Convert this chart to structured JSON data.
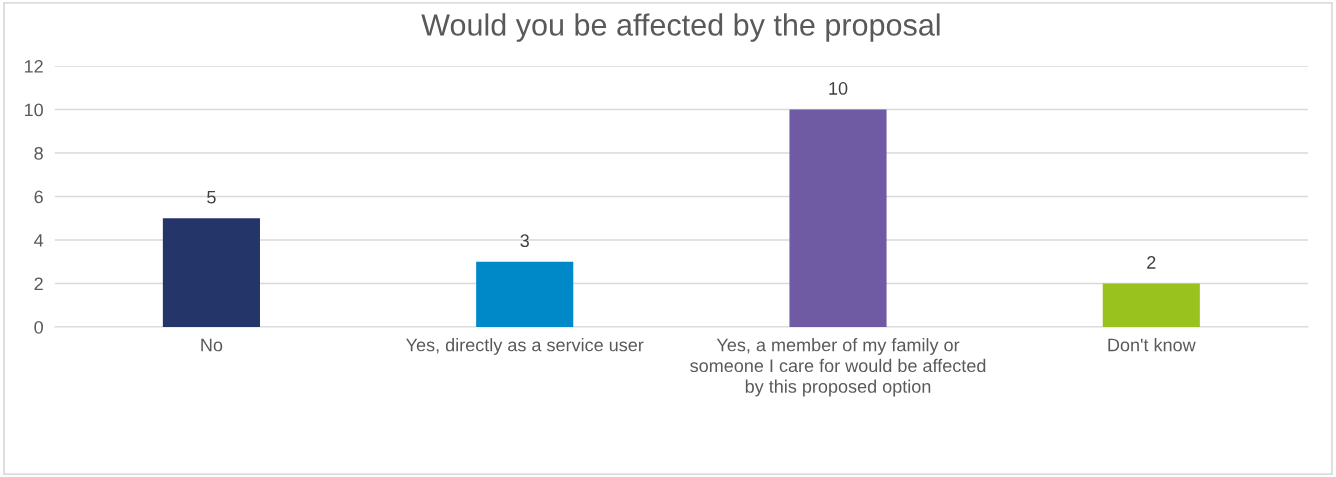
{
  "chart_data": {
    "type": "bar",
    "title": "Would you be affected by the proposal",
    "categories": [
      "No",
      "Yes, directly as a service user",
      "Yes, a member of my family or someone I care for would be affected by this proposed option",
      "Don't know"
    ],
    "values": [
      5,
      3,
      10,
      2
    ],
    "colors": [
      "#243569",
      "#0089c9",
      "#6f5ba3",
      "#99c21e"
    ],
    "ylim": [
      0,
      12
    ],
    "yticks": [
      0,
      2,
      4,
      6,
      8,
      10,
      12
    ],
    "grid": "y",
    "data_labels": true
  }
}
